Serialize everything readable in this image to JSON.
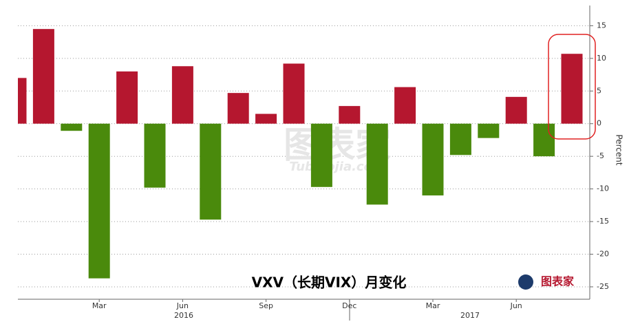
{
  "chart_data": {
    "type": "bar",
    "title": "VXV（长期VIX）月变化",
    "y_label": "Percent",
    "categories": [
      null,
      null,
      null,
      "Mar",
      null,
      null,
      "Jun",
      null,
      null,
      "Sep",
      null,
      null,
      "Dec",
      null,
      null,
      "Mar",
      null,
      null,
      "Jun",
      null,
      null
    ],
    "year_labels": [
      "2016",
      "2017"
    ],
    "values": [
      7,
      14.5,
      -1.1,
      -23.7,
      8,
      -9.8,
      8.8,
      -14.7,
      4.7,
      1.5,
      9.2,
      -9.7,
      2.7,
      -12.4,
      5.6,
      -11,
      -4.8,
      -2.2,
      4.1,
      -5,
      10.7
    ],
    "positive_color": "#b5172f",
    "negative_color": "#4a8a0c",
    "ylim": [
      -26.9,
      18.1
    ],
    "yticks": [
      15,
      10,
      5,
      0,
      -5,
      -10,
      -15,
      -20,
      -25
    ],
    "grid": true,
    "watermark": "图表家",
    "watermark_sub": "Tubiaojia.com"
  }
}
